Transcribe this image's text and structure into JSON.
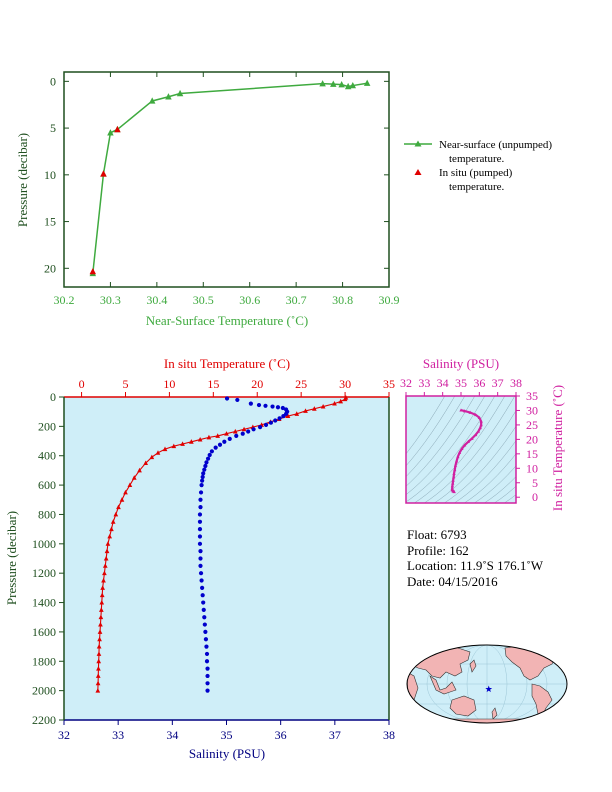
{
  "colors": {
    "green": "#3faa3f",
    "red": "#e00000",
    "blue": "#0000cc",
    "navy": "#000080",
    "magenta": "#d020a0",
    "plot_bg": "#cfeef8",
    "axis_dark": "#1f4f1f"
  },
  "top_chart": {
    "type": "line",
    "xlabel": "Near-Surface Temperature (˚C)",
    "ylabel": "Pressure (decibar)",
    "xlim": [
      30.2,
      30.9
    ],
    "ylim": [
      22,
      -1
    ],
    "x_ticks": [
      "30.2",
      "30.3",
      "30.4",
      "30.5",
      "30.6",
      "30.7",
      "30.8",
      "30.9"
    ],
    "y_ticks": [
      "0",
      "5",
      "10",
      "15",
      "20"
    ],
    "series": [
      {
        "name": "Near-surface (unpumped) temperature.",
        "points": [
          [
            30.853,
            0.2
          ],
          [
            30.822,
            0.45
          ],
          [
            30.812,
            0.55
          ],
          [
            30.798,
            0.35
          ],
          [
            30.78,
            0.3
          ],
          [
            30.757,
            0.25
          ],
          [
            30.45,
            1.3
          ],
          [
            30.425,
            1.65
          ],
          [
            30.39,
            2.1
          ],
          [
            30.315,
            5.15
          ],
          [
            30.3,
            5.5
          ],
          [
            30.285,
            9.9
          ],
          [
            30.262,
            20.55
          ]
        ]
      },
      {
        "name": "In situ (pumped) temperature.",
        "points": [
          [
            30.315,
            5.15
          ],
          [
            30.285,
            9.9
          ],
          [
            30.262,
            20.35
          ]
        ]
      }
    ],
    "legend": [
      "Near-surface (unpumped)",
      "temperature.",
      "In situ (pumped)",
      "temperature."
    ]
  },
  "main_chart": {
    "type": "scatter",
    "ylabel": "Pressure (decibar)",
    "top_xlabel": "In situ Temperature (˚C)",
    "bottom_xlabel": "Salinity (PSU)",
    "temp_lim": [
      -2,
      35
    ],
    "sal_lim": [
      32,
      38
    ],
    "pres_lim": [
      0,
      2200
    ],
    "temp_ticks": [
      "0",
      "5",
      "10",
      "15",
      "20",
      "25",
      "30",
      "35"
    ],
    "sal_ticks": [
      "32",
      "33",
      "34",
      "35",
      "36",
      "37",
      "38"
    ],
    "pres_ticks": [
      "0",
      "200",
      "400",
      "600",
      "800",
      "1000",
      "1200",
      "1400",
      "1600",
      "1800",
      "2000",
      "2200"
    ],
    "temperature_profile": [
      [
        30.1,
        5
      ],
      [
        30.0,
        15
      ],
      [
        29.5,
        30
      ],
      [
        28.8,
        45
      ],
      [
        27.5,
        65
      ],
      [
        26.5,
        80
      ],
      [
        25.5,
        95
      ],
      [
        24.5,
        115
      ],
      [
        23.5,
        130
      ],
      [
        22.5,
        150
      ],
      [
        21.5,
        170
      ],
      [
        20.5,
        190
      ],
      [
        19.5,
        205
      ],
      [
        18.5,
        220
      ],
      [
        17.5,
        235
      ],
      [
        16.5,
        250
      ],
      [
        15.5,
        265
      ],
      [
        14.5,
        275
      ],
      [
        13.5,
        290
      ],
      [
        12.5,
        305
      ],
      [
        11.5,
        320
      ],
      [
        10.5,
        335
      ],
      [
        9.5,
        355
      ],
      [
        8.7,
        380
      ],
      [
        8.0,
        410
      ],
      [
        7.3,
        450
      ],
      [
        6.6,
        500
      ],
      [
        6.0,
        550
      ],
      [
        5.5,
        600
      ],
      [
        5.0,
        650
      ],
      [
        4.6,
        700
      ],
      [
        4.2,
        750
      ],
      [
        3.9,
        800
      ],
      [
        3.6,
        850
      ],
      [
        3.4,
        900
      ],
      [
        3.2,
        950
      ],
      [
        3.0,
        1000
      ],
      [
        2.9,
        1050
      ],
      [
        2.8,
        1100
      ],
      [
        2.7,
        1150
      ],
      [
        2.6,
        1200
      ],
      [
        2.5,
        1250
      ],
      [
        2.4,
        1300
      ],
      [
        2.35,
        1350
      ],
      [
        2.3,
        1400
      ],
      [
        2.25,
        1450
      ],
      [
        2.2,
        1500
      ],
      [
        2.15,
        1550
      ],
      [
        2.1,
        1600
      ],
      [
        2.05,
        1650
      ],
      [
        2.0,
        1700
      ],
      [
        1.98,
        1750
      ],
      [
        1.95,
        1800
      ],
      [
        1.92,
        1850
      ],
      [
        1.9,
        1900
      ],
      [
        1.88,
        1950
      ],
      [
        1.85,
        2000
      ]
    ],
    "salinity_profile": [
      [
        35.01,
        10
      ],
      [
        35.2,
        20
      ],
      [
        35.45,
        45
      ],
      [
        35.6,
        55
      ],
      [
        35.72,
        60
      ],
      [
        35.85,
        65
      ],
      [
        35.95,
        70
      ],
      [
        36.04,
        75
      ],
      [
        36.1,
        85
      ],
      [
        36.12,
        100
      ],
      [
        36.1,
        115
      ],
      [
        36.05,
        130
      ],
      [
        35.98,
        145
      ],
      [
        35.9,
        160
      ],
      [
        35.82,
        175
      ],
      [
        35.73,
        190
      ],
      [
        35.62,
        205
      ],
      [
        35.5,
        220
      ],
      [
        35.4,
        235
      ],
      [
        35.3,
        250
      ],
      [
        35.18,
        265
      ],
      [
        35.06,
        285
      ],
      [
        34.96,
        305
      ],
      [
        34.88,
        325
      ],
      [
        34.8,
        345
      ],
      [
        34.73,
        370
      ],
      [
        34.69,
        395
      ],
      [
        34.66,
        420
      ],
      [
        34.63,
        445
      ],
      [
        34.61,
        470
      ],
      [
        34.59,
        495
      ],
      [
        34.57,
        520
      ],
      [
        34.56,
        545
      ],
      [
        34.55,
        570
      ],
      [
        34.54,
        600
      ],
      [
        34.53,
        650
      ],
      [
        34.52,
        700
      ],
      [
        34.52,
        750
      ],
      [
        34.51,
        800
      ],
      [
        34.51,
        850
      ],
      [
        34.51,
        900
      ],
      [
        34.51,
        950
      ],
      [
        34.51,
        1000
      ],
      [
        34.52,
        1050
      ],
      [
        34.52,
        1100
      ],
      [
        34.52,
        1150
      ],
      [
        34.53,
        1200
      ],
      [
        34.54,
        1250
      ],
      [
        34.55,
        1300
      ],
      [
        34.56,
        1350
      ],
      [
        34.57,
        1400
      ],
      [
        34.58,
        1450
      ],
      [
        34.59,
        1500
      ],
      [
        34.6,
        1550
      ],
      [
        34.61,
        1600
      ],
      [
        34.62,
        1650
      ],
      [
        34.63,
        1700
      ],
      [
        34.64,
        1750
      ],
      [
        34.64,
        1800
      ],
      [
        34.65,
        1850
      ],
      [
        34.65,
        1900
      ],
      [
        34.65,
        1950
      ],
      [
        34.65,
        2000
      ]
    ]
  },
  "ts_chart": {
    "type": "line",
    "xlabel": "Salinity (PSU)",
    "ylabel": "In situ Temperature (˚C)",
    "sal_lim": [
      32,
      38
    ],
    "temp_lim": [
      -2,
      35
    ],
    "sal_ticks": [
      "32",
      "33",
      "34",
      "35",
      "36",
      "37",
      "38"
    ],
    "temp_ticks": [
      "0",
      "5",
      "10",
      "15",
      "20",
      "25",
      "30",
      "35"
    ],
    "curve": [
      [
        35.0,
        30.1
      ],
      [
        35.2,
        29.8
      ],
      [
        35.5,
        29.3
      ],
      [
        35.8,
        28.5
      ],
      [
        36.0,
        27.5
      ],
      [
        36.1,
        26.2
      ],
      [
        36.1,
        25.0
      ],
      [
        36.05,
        24.0
      ],
      [
        35.95,
        22.8
      ],
      [
        35.8,
        21.6
      ],
      [
        35.6,
        20.3
      ],
      [
        35.4,
        19.2
      ],
      [
        35.2,
        18.0
      ],
      [
        35.05,
        16.8
      ],
      [
        34.92,
        15.4
      ],
      [
        34.83,
        14.0
      ],
      [
        34.76,
        12.5
      ],
      [
        34.7,
        11.0
      ],
      [
        34.66,
        9.5
      ],
      [
        34.62,
        8.2
      ],
      [
        34.6,
        7.0
      ],
      [
        34.57,
        5.8
      ],
      [
        34.55,
        4.8
      ],
      [
        34.53,
        3.9
      ],
      [
        34.52,
        3.1
      ],
      [
        34.52,
        2.6
      ],
      [
        34.55,
        2.2
      ],
      [
        34.6,
        2.0
      ],
      [
        34.63,
        1.9
      ]
    ]
  },
  "float_info": {
    "float": "Float:  6793",
    "profile": "Profile:  162",
    "location": "Location:  11.9˚S  176.1˚W",
    "date": "Date:  04/15/2016"
  },
  "map": {
    "marker_lon": -176.1,
    "marker_lat": -11.9,
    "marker": "star"
  }
}
